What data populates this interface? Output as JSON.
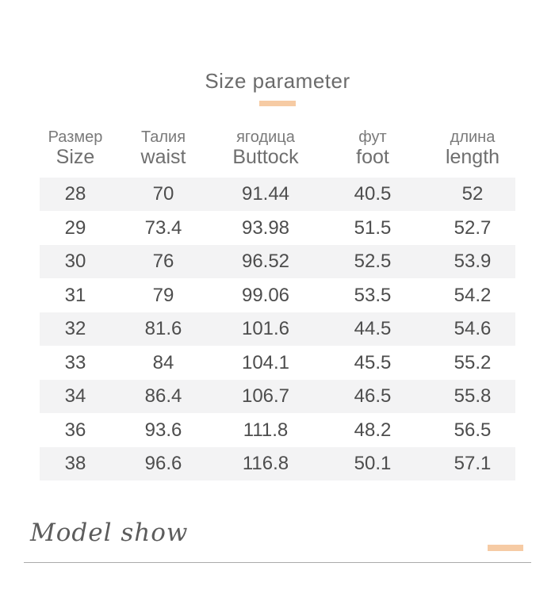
{
  "header": {
    "title": "Size parameter"
  },
  "chart_data": {
    "type": "table",
    "title": "Size parameter",
    "columns": [
      {
        "ru": "Размер",
        "en": "Size"
      },
      {
        "ru": "Талия",
        "en": "waist"
      },
      {
        "ru": "ягодица",
        "en": "Buttock"
      },
      {
        "ru": "фут",
        "en": "foot"
      },
      {
        "ru": "длина",
        "en": "length"
      }
    ],
    "rows": [
      [
        "28",
        "70",
        "91.44",
        "40.5",
        "52"
      ],
      [
        "29",
        "73.4",
        "93.98",
        "51.5",
        "52.7"
      ],
      [
        "30",
        "76",
        "96.52",
        "52.5",
        "53.9"
      ],
      [
        "31",
        "79",
        "99.06",
        "53.5",
        "54.2"
      ],
      [
        "32",
        "81.6",
        "101.6",
        "44.5",
        "54.6"
      ],
      [
        "33",
        "84",
        "104.1",
        "45.5",
        "55.2"
      ],
      [
        "34",
        "86.4",
        "106.7",
        "46.5",
        "55.8"
      ],
      [
        "36",
        "93.6",
        "111.8",
        "48.2",
        "56.5"
      ],
      [
        "38",
        "96.6",
        "116.8",
        "50.1",
        "57.1"
      ]
    ],
    "striped_row_indexes": [
      0,
      2,
      4,
      6,
      8
    ]
  },
  "footer": {
    "section_title": "Model show"
  },
  "colors": {
    "accent": "#f6cba4",
    "stripe": "#f3f3f4",
    "title_text": "#6b6b6b",
    "header_text": "#7a7a7a",
    "cell_text": "#4d4d4d",
    "divider": "#ababab"
  }
}
